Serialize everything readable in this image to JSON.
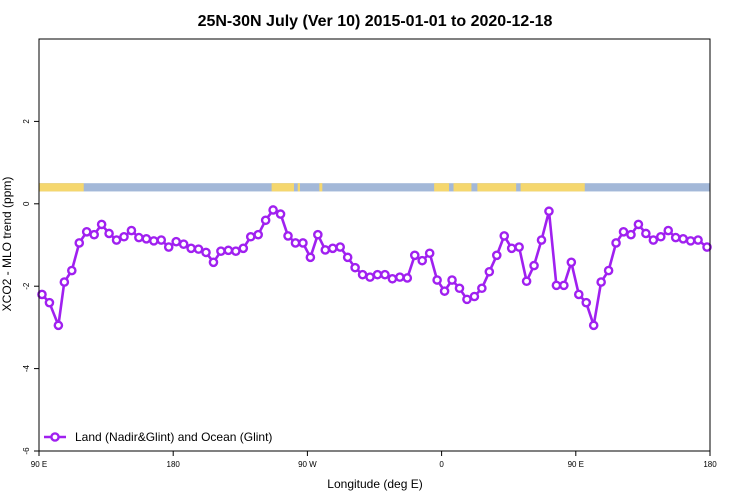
{
  "chart_data": {
    "type": "line",
    "title": "25N-30N July (Ver 10)   2015-01-01 to 2020-12-18",
    "xlabel": "Longitude (deg E)",
    "ylabel": "XCO2 - MLO trend (ppm)",
    "xlim": [
      90,
      540
    ],
    "ylim": [
      -6,
      4
    ],
    "x_ticks": [
      {
        "value": 90,
        "label": "90 E"
      },
      {
        "value": 180,
        "label": "180"
      },
      {
        "value": 270,
        "label": "90 W"
      },
      {
        "value": 360,
        "label": "0"
      },
      {
        "value": 450,
        "label": "90 E"
      },
      {
        "value": 540,
        "label": "180"
      }
    ],
    "y_ticks": [
      {
        "value": -6,
        "label": "-6"
      },
      {
        "value": -4,
        "label": "-4"
      },
      {
        "value": -2,
        "label": "-2"
      },
      {
        "value": 0,
        "label": "0"
      },
      {
        "value": 2,
        "label": "2"
      }
    ],
    "grid": false,
    "legend_position": "bottom-left",
    "colors": {
      "series": "#a020f0",
      "land": "#f5d76e",
      "ocean": "#a3b8d8"
    },
    "land_ocean_band": {
      "y_range": [
        0.3,
        0.5
      ],
      "land_segments": [
        [
          90,
          120
        ],
        [
          246,
          261
        ],
        [
          263.5,
          265
        ],
        [
          278,
          280
        ],
        [
          355,
          365
        ],
        [
          368,
          380
        ],
        [
          384,
          410
        ],
        [
          413,
          456
        ]
      ]
    },
    "series": [
      {
        "name": "Land (Nadir&Glint) and Ocean (Glint)",
        "x": [
          92,
          97,
          103,
          107,
          112,
          117,
          122,
          127,
          132,
          137,
          142,
          147,
          152,
          157,
          162,
          167,
          172,
          177,
          182,
          187,
          192,
          197,
          202,
          207,
          212,
          217,
          222,
          227,
          232,
          237,
          242,
          247,
          252,
          257,
          262,
          267,
          272,
          277,
          282,
          287,
          292,
          297,
          302,
          307,
          312,
          317,
          322,
          327,
          332,
          337,
          342,
          347,
          352,
          357,
          362,
          367,
          372,
          377,
          382,
          387,
          392,
          397,
          402,
          407,
          412,
          417,
          422,
          427,
          432,
          437,
          442,
          447,
          452,
          457,
          462,
          467,
          472,
          477,
          482,
          487,
          492,
          497,
          502,
          507,
          512,
          517,
          522,
          527,
          532,
          538
        ],
        "values": [
          -2.2,
          -2.4,
          -2.95,
          -1.9,
          -1.62,
          -0.95,
          -0.68,
          -0.75,
          -0.5,
          -0.72,
          -0.88,
          -0.8,
          -0.65,
          -0.82,
          -0.85,
          -0.9,
          -0.88,
          -1.05,
          -0.92,
          -0.98,
          -1.08,
          -1.1,
          -1.18,
          -1.42,
          -1.15,
          -1.13,
          -1.15,
          -1.08,
          -0.8,
          -0.75,
          -0.4,
          -0.15,
          -0.25,
          -0.78,
          -0.95,
          -0.95,
          -1.3,
          -0.75,
          -1.12,
          -1.08,
          -1.05,
          -1.3,
          -1.55,
          -1.72,
          -1.78,
          -1.72,
          -1.72,
          -1.82,
          -1.78,
          -1.8,
          -1.25,
          -1.38,
          -1.2,
          -1.85,
          -2.12,
          -1.85,
          -2.05,
          -2.32,
          -2.25,
          -2.05,
          -1.65,
          -1.25,
          -0.78,
          -1.08,
          -1.05,
          -1.88,
          -1.5,
          -0.88,
          -0.18,
          -1.98,
          -1.98,
          -1.42,
          -2.2,
          -2.4,
          -2.95,
          -1.9,
          -1.62,
          -0.95,
          -0.68,
          -0.75,
          -0.5,
          -0.72,
          -0.88,
          -0.8,
          -0.65,
          -0.82,
          -0.85,
          -0.9,
          -0.88,
          -1.05
        ]
      }
    ]
  }
}
